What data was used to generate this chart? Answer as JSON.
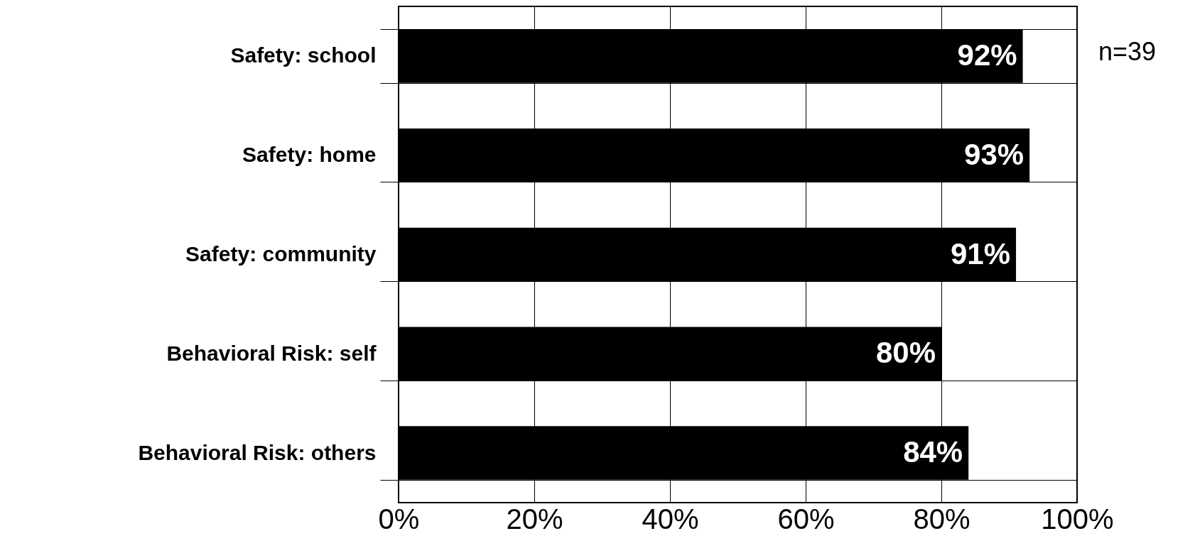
{
  "chart_data": {
    "type": "bar",
    "orientation": "horizontal",
    "categories": [
      "Safety: school",
      "Safety: home",
      "Safety: community",
      "Behavioral Risk: self",
      "Behavioral Risk: others"
    ],
    "values": [
      92,
      93,
      91,
      80,
      84
    ],
    "color": "#000000",
    "xlim": [
      0,
      100
    ],
    "xticks": [
      {
        "value": 0,
        "label": "0%"
      },
      {
        "value": 20,
        "label": "20%"
      },
      {
        "value": 40,
        "label": "40%"
      },
      {
        "value": 60,
        "label": "60%"
      },
      {
        "value": 80,
        "label": "80%"
      },
      {
        "value": 100,
        "label": "100%"
      }
    ],
    "value_labels": [
      "92%",
      "93%",
      "91%",
      "80%",
      "84%"
    ],
    "grid": true,
    "annotations": [
      "n=39"
    ]
  }
}
